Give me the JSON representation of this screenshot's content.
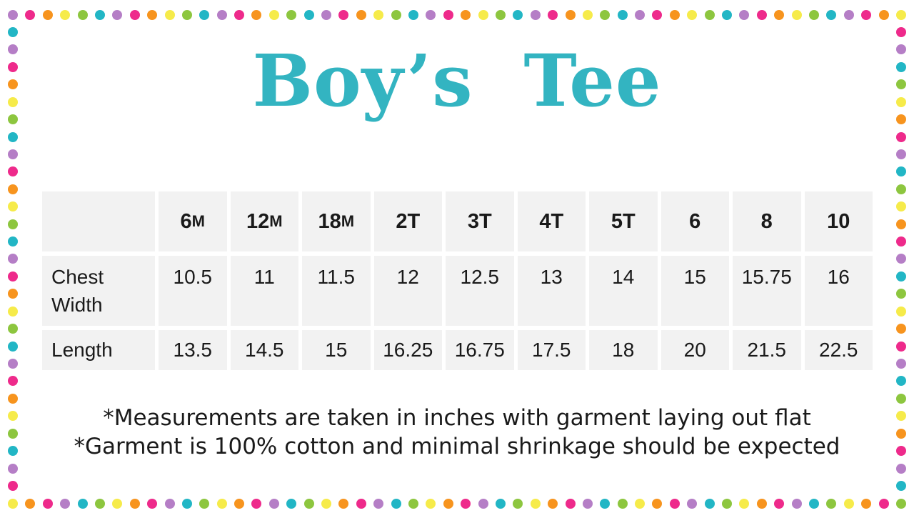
{
  "title": {
    "text": "Boy’s Tee",
    "color": "#33b4c1"
  },
  "chart_data": {
    "type": "table",
    "title": "Boy's Tee",
    "columns": [
      "",
      "6M",
      "12M",
      "18M",
      "2T",
      "3T",
      "4T",
      "5T",
      "6",
      "8",
      "10"
    ],
    "rows": [
      [
        "Chest Width",
        10.5,
        11,
        11.5,
        12,
        12.5,
        13,
        14,
        15,
        15.75,
        16
      ],
      [
        "Length",
        13.5,
        14.5,
        15,
        16.25,
        16.75,
        17.5,
        18,
        20,
        21.5,
        22.5
      ]
    ],
    "notes": [
      "*Measurements are taken in inches with garment laying out flat",
      "*Garment is 100% cotton and minimal shrinkage should be expected"
    ]
  },
  "table": {
    "columns": [
      {
        "main": "6",
        "suffix": "M"
      },
      {
        "main": "12",
        "suffix": "M"
      },
      {
        "main": "18",
        "suffix": "M"
      },
      {
        "main": "2T",
        "suffix": ""
      },
      {
        "main": "3T",
        "suffix": ""
      },
      {
        "main": "4T",
        "suffix": ""
      },
      {
        "main": "5T",
        "suffix": ""
      },
      {
        "main": "6",
        "suffix": ""
      },
      {
        "main": "8",
        "suffix": ""
      },
      {
        "main": "10",
        "suffix": ""
      }
    ],
    "rows": [
      {
        "label": "Chest Width",
        "values": [
          "10.5",
          "11",
          "11.5",
          "12",
          "12.5",
          "13",
          "14",
          "15",
          "15.75",
          "16"
        ]
      },
      {
        "label": "Length",
        "values": [
          "13.5",
          "14.5",
          "15",
          "16.25",
          "16.75",
          "17.5",
          "18",
          "20",
          "21.5",
          "22.5"
        ]
      }
    ],
    "cell_background": "#f2f2f2",
    "text_color": "#1a1a1a"
  },
  "footnotes": {
    "lines": [
      "*Measurements are taken in inches with garment laying out flat",
      "*Garment is 100% cotton and minimal shrinkage should be expected"
    ]
  },
  "border": {
    "palette": {
      "purple": "#b57ec6",
      "pink": "#ee2a8b",
      "orange": "#f7941e",
      "yellow": "#f6eb4a",
      "green": "#8dc63f",
      "teal": "#22b6c5"
    },
    "sides": {
      "top": [
        "purple",
        "pink",
        "orange",
        "yellow",
        "green",
        "teal",
        "purple",
        "pink",
        "orange",
        "yellow",
        "green",
        "teal",
        "purple",
        "pink",
        "orange",
        "yellow",
        "green",
        "teal",
        "purple",
        "pink",
        "orange",
        "yellow",
        "green",
        "teal",
        "purple",
        "pink",
        "orange",
        "yellow",
        "green",
        "teal",
        "purple",
        "pink",
        "orange",
        "yellow",
        "green",
        "teal",
        "purple",
        "pink",
        "orange",
        "yellow",
        "green",
        "teal",
        "purple",
        "pink",
        "orange",
        "yellow",
        "green",
        "teal",
        "purple",
        "pink",
        "orange",
        "yellow"
      ],
      "bottom": [
        "yellow",
        "orange",
        "pink",
        "purple",
        "teal",
        "green",
        "yellow",
        "orange",
        "pink",
        "purple",
        "teal",
        "green",
        "yellow",
        "orange",
        "pink",
        "purple",
        "teal",
        "green",
        "yellow",
        "orange",
        "pink",
        "purple",
        "teal",
        "green",
        "yellow",
        "orange",
        "pink",
        "purple",
        "teal",
        "green",
        "yellow",
        "orange",
        "pink",
        "purple",
        "teal",
        "green",
        "yellow",
        "orange",
        "pink",
        "purple",
        "teal",
        "green",
        "yellow",
        "orange",
        "pink",
        "purple",
        "teal",
        "green",
        "yellow",
        "orange",
        "pink",
        "green"
      ],
      "left": [
        "teal",
        "purple",
        "pink",
        "orange",
        "yellow",
        "green",
        "teal",
        "purple",
        "pink",
        "orange",
        "yellow",
        "green",
        "teal",
        "purple",
        "pink",
        "orange",
        "yellow",
        "green",
        "teal",
        "purple",
        "pink",
        "orange",
        "yellow",
        "green",
        "teal",
        "purple",
        "pink"
      ],
      "right": [
        "pink",
        "purple",
        "teal",
        "green",
        "yellow",
        "orange",
        "pink",
        "purple",
        "teal",
        "green",
        "yellow",
        "orange",
        "pink",
        "purple",
        "teal",
        "green",
        "yellow",
        "orange",
        "pink",
        "purple",
        "teal",
        "green",
        "yellow",
        "orange",
        "pink",
        "purple",
        "teal"
      ]
    }
  }
}
